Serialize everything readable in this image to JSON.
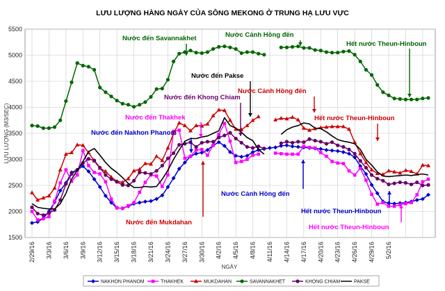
{
  "chart_data": {
    "type": "line",
    "title": "LƯU LƯỢNG HÀNG NGÀY CỦA SÔNG MEKONG Ở TRUNG HẠ LƯU VỰC",
    "xlabel": "NGÀY",
    "ylabel": "LƯU LƯỢNG (M3/SEC)",
    "ylim": [
      1500,
      5500
    ],
    "yticks": [
      1500,
      2000,
      2500,
      3000,
      3500,
      4000,
      4500,
      5000,
      5500
    ],
    "x_tick_labels": [
      "2/29/16",
      "3/3/16",
      "3/6/16",
      "3/9/16",
      "3/12/16",
      "3/15/16",
      "3/18/16",
      "3/21/16",
      "3/24/16",
      "3/27/16",
      "3/30/16",
      "4/2/16",
      "4/5/16",
      "4/8/16",
      "4/11/16",
      "4/14/16",
      "4/17/16",
      "4/20/16",
      "4/23/16",
      "4/26/16",
      "4/29/16",
      "5/2/16"
    ],
    "grid": true,
    "legend_position": "bottom",
    "series": [
      {
        "name": "NAKHON PHANOM",
        "color": "#0000cc",
        "marker": "diamond",
        "values": [
          1780,
          1800,
          1870,
          2000,
          2180,
          2400,
          2550,
          2750,
          2800,
          2870,
          2770,
          2620,
          2470,
          2300,
          2170,
          2070,
          2060,
          2100,
          2150,
          2170,
          2190,
          2200,
          2240,
          2310,
          2470,
          2640,
          2820,
          2940,
          3060,
          3110,
          3130,
          3180,
          3270,
          3330,
          3260,
          3140,
          3070,
          3050,
          3070,
          3140,
          3180,
          3200,
          3220,
          3230,
          3260,
          3270,
          3250,
          3240,
          3230,
          3220,
          3210,
          3200,
          3180,
          3170,
          3160,
          3140,
          3110,
          3040,
          2870,
          2720,
          2510,
          2350,
          2190,
          2160,
          2150,
          2160,
          2170,
          2190,
          2220,
          2240,
          2320
        ]
      },
      {
        "name": "THAKHEK",
        "color": "#ff00ff",
        "marker": "square",
        "values": [
          2000,
          1840,
          1860,
          1900,
          2200,
          2550,
          2800,
          2580,
          2700,
          3170,
          2880,
          2750,
          2720,
          2570,
          2240,
          2070,
          2060,
          2110,
          2170,
          2370,
          2560,
          2700,
          2680,
          2480,
          2700,
          3540,
          3560,
          3020,
          3060,
          3180,
          3190,
          3080,
          3270,
          3480,
          3690,
          3350,
          2940,
          2960,
          3000,
          3080,
          3100,
          null,
          null,
          3120,
          3110,
          3100,
          3100,
          3100,
          3250,
          3230,
          3220,
          3130,
          3060,
          2960,
          2930,
          2920,
          2780,
          2700,
          2830,
          2600,
          2330,
          2140,
          2170,
          2100,
          2100,
          2130,
          2150,
          2170,
          2320,
          2570,
          2620
        ]
      },
      {
        "name": "MUKDAHAN",
        "color": "#cc0000",
        "marker": "triangle",
        "values": [
          2360,
          2220,
          2260,
          2300,
          2450,
          2800,
          3100,
          3130,
          3280,
          3270,
          3130,
          2970,
          2830,
          2770,
          2660,
          2580,
          2560,
          2630,
          2780,
          2810,
          2920,
          2910,
          3060,
          2980,
          3220,
          3500,
          3700,
          3650,
          3550,
          3650,
          3640,
          3680,
          3840,
          3950,
          3940,
          3750,
          3580,
          3570,
          3650,
          3750,
          3820,
          null,
          null,
          3760,
          3790,
          3780,
          3810,
          3760,
          3600,
          3560,
          3590,
          3610,
          3620,
          3630,
          3630,
          3630,
          3580,
          3330,
          3110,
          2940,
          2800,
          2730,
          2710,
          2780,
          2760,
          2740,
          2790,
          2770,
          2720,
          2890,
          2880
        ]
      },
      {
        "name": "SAVANNAKHET",
        "color": "#006600",
        "marker": "circle",
        "values": [
          3650,
          3640,
          3600,
          3600,
          3620,
          3750,
          4120,
          4480,
          4850,
          4800,
          4780,
          4720,
          4380,
          4290,
          4210,
          4130,
          4070,
          4050,
          4010,
          4050,
          4100,
          4200,
          4350,
          4360,
          4530,
          4880,
          5030,
          5060,
          5090,
          5050,
          5040,
          5060,
          5120,
          5160,
          5170,
          5150,
          5120,
          5040,
          5060,
          5060,
          5030,
          5010,
          null,
          null,
          5150,
          5150,
          5160,
          5170,
          5140,
          5140,
          5100,
          5090,
          5060,
          5050,
          5050,
          5070,
          5080,
          5010,
          4880,
          4720,
          4620,
          4430,
          4290,
          4230,
          4170,
          4160,
          4150,
          4150,
          4150,
          4170,
          4180
        ]
      },
      {
        "name": "KHONG CHIAM",
        "color": "#660066",
        "marker": "circle",
        "values": [
          2080,
          1960,
          1930,
          1970,
          2030,
          2220,
          2530,
          2720,
          2800,
          2930,
          3010,
          2980,
          2840,
          2700,
          2620,
          2570,
          2510,
          2500,
          2590,
          2750,
          2740,
          2720,
          2780,
          2880,
          3020,
          3120,
          3280,
          3300,
          3330,
          3240,
          3320,
          3340,
          3340,
          3420,
          3460,
          3510,
          3400,
          3320,
          3240,
          3220,
          3250,
          3210,
          null,
          null,
          3310,
          3340,
          3320,
          3340,
          3330,
          3390,
          3360,
          3340,
          3300,
          3330,
          3270,
          3240,
          3190,
          3110,
          2970,
          2840,
          2700,
          2630,
          2590,
          2520,
          2540,
          2560,
          2550,
          2520,
          2560,
          2500,
          2510
        ]
      },
      {
        "name": "PAKSE",
        "color": "#000000",
        "marker": "none",
        "values": [
          2150,
          2080,
          2060,
          2050,
          2050,
          2150,
          2350,
          2620,
          2790,
          2960,
          3150,
          3210,
          3080,
          2940,
          2830,
          2750,
          2650,
          2540,
          2460,
          2460,
          2480,
          2470,
          2480,
          2620,
          2790,
          3000,
          3180,
          3350,
          3400,
          3400,
          3430,
          3450,
          3500,
          3550,
          3800,
          3650,
          3600,
          3520,
          3420,
          3360,
          3190,
          3100,
          null,
          null,
          3480,
          3570,
          3620,
          3650,
          3700,
          3680,
          3600,
          3590,
          3530,
          3450,
          3380,
          3350,
          3330,
          3300,
          3190,
          3000,
          2890,
          2760,
          2680,
          2670,
          2680,
          2690,
          2700,
          2690,
          2710,
          2720,
          2700
        ]
      }
    ],
    "annotations": [
      {
        "text": "Nước đến Savannakhet",
        "color": "#006600"
      },
      {
        "text": "Nước Cảnh Hồng đến",
        "color": "#006600"
      },
      {
        "text": "Hết nước Theun-Hinboun",
        "color": "#006600"
      },
      {
        "text": "Nước đến Pakse",
        "color": "#000000"
      },
      {
        "text": "Nước Cảnh Hồng đến",
        "color": "#cc0000"
      },
      {
        "text": "Nước đến Khong Chiam",
        "color": "#660066"
      },
      {
        "text": "Nước đến Thakhek",
        "color": "#ff00ff"
      },
      {
        "text": "Hết nước Theun-Hinboun",
        "color": "#cc0000"
      },
      {
        "text": "Nước đến Nakhon Phanom",
        "color": "#0000cc"
      },
      {
        "text": "Nước Cảnh Hồng đến",
        "color": "#0000cc"
      },
      {
        "text": "Nước đến Mukdahan",
        "color": "#cc0000"
      },
      {
        "text": "Hết nước Theun-Hinboun",
        "color": "#0000cc"
      },
      {
        "text": "Hết nước Theun-Hinboun",
        "color": "#ff00ff"
      }
    ]
  }
}
